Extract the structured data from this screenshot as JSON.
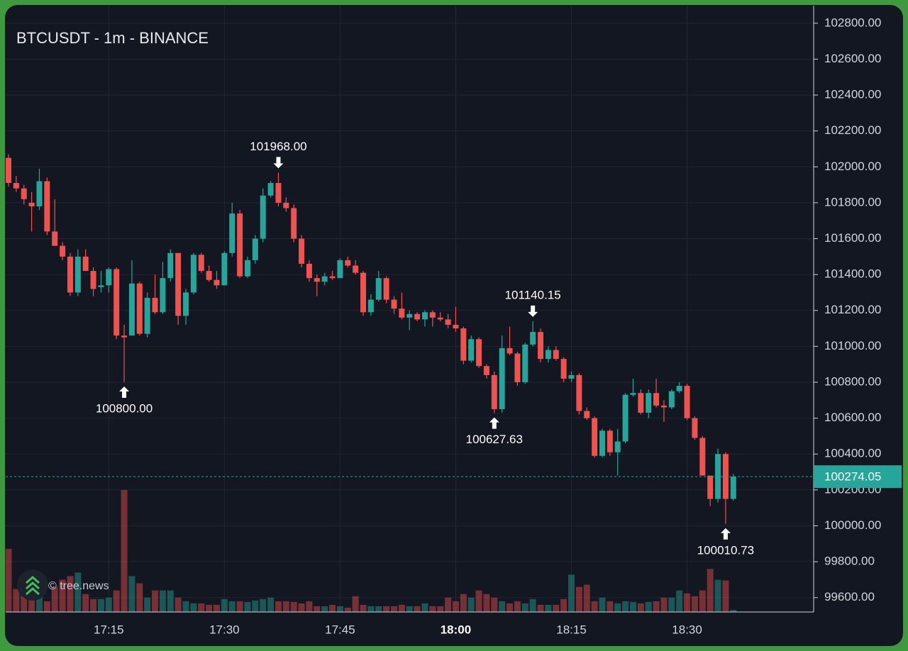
{
  "chart_data": {
    "type": "candlestick",
    "title": "BTCUSDT - 1m - BINANCE",
    "watermark": "© tree.news",
    "categories": [
      null,
      null,
      null,
      null,
      null,
      null,
      null,
      null,
      null,
      null,
      null,
      null,
      null,
      "17:15",
      null,
      null,
      null,
      null,
      null,
      null,
      null,
      null,
      null,
      null,
      null,
      null,
      null,
      null,
      "17:30",
      null,
      null,
      null,
      null,
      null,
      null,
      null,
      null,
      null,
      null,
      null,
      null,
      null,
      null,
      "17:45",
      null,
      null,
      null,
      null,
      null,
      null,
      null,
      null,
      null,
      null,
      null,
      null,
      null,
      null,
      "18:00",
      null,
      null,
      null,
      null,
      null,
      null,
      null,
      null,
      null,
      null,
      null,
      null,
      null,
      null,
      "18:15",
      null,
      null,
      null,
      null,
      null,
      null,
      null,
      null,
      null,
      null,
      null,
      null,
      null,
      null,
      "18:30",
      null,
      null,
      null,
      null,
      null,
      null
    ],
    "open": [
      102050,
      101910,
      101880,
      101800,
      101780,
      101920,
      101640,
      101560,
      101500,
      101300,
      101500,
      101420,
      101330,
      101340,
      101430,
      101060,
      101060,
      101350,
      101070,
      101270,
      101190,
      101380,
      101520,
      101170,
      101300,
      101510,
      101420,
      101370,
      101340,
      101520,
      101740,
      101390,
      101480,
      101600,
      101840,
      101910,
      101800,
      101770,
      101600,
      101460,
      101380,
      101360,
      101390,
      101380,
      101480,
      101450,
      101410,
      101190,
      101260,
      101380,
      101260,
      101210,
      101160,
      101180,
      101150,
      101190,
      101160,
      101150,
      101120,
      101100,
      100920,
      101040,
      100890,
      100840,
      100650,
      100990,
      100960,
      100800,
      101010,
      101080,
      100930,
      100980,
      100930,
      100820,
      100840,
      100640,
      100600,
      100390,
      100530,
      100410,
      100470,
      100730,
      100740,
      100630,
      100740,
      100670,
      100660,
      100750,
      100780,
      100600,
      100490,
      100280,
      100150,
      100400,
      100150
    ],
    "high": [
      102070,
      101950,
      101900,
      101860,
      101990,
      101940,
      101820,
      101580,
      101520,
      101540,
      101540,
      101440,
      101420,
      101440,
      101440,
      101120,
      101480,
      101360,
      101300,
      101400,
      101470,
      101540,
      101520,
      101320,
      101520,
      101520,
      101450,
      101420,
      101530,
      101800,
      101760,
      101500,
      101620,
      101880,
      101920,
      101968,
      101830,
      101790,
      101620,
      101480,
      101400,
      101410,
      101420,
      101490,
      101500,
      101480,
      101420,
      101290,
      101420,
      101390,
      101280,
      101300,
      101200,
      101190,
      101200,
      101200,
      101190,
      101180,
      101220,
      101110,
      101060,
      101050,
      100900,
      100860,
      101060,
      101110,
      100970,
      101020,
      101140.15,
      101100,
      101000,
      101000,
      100940,
      100860,
      100850,
      100660,
      100610,
      100540,
      100540,
      100540,
      100740,
      100820,
      100760,
      100760,
      100820,
      100700,
      100760,
      100800,
      100790,
      100610,
      100500,
      100280,
      100430,
      100410,
      100290
    ],
    "low": [
      101890,
      101860,
      101790,
      101640,
      101760,
      101620,
      101560,
      101480,
      101280,
      101280,
      101420,
      101280,
      101300,
      101300,
      101040,
      100800,
      101060,
      101060,
      101050,
      101180,
      101180,
      101360,
      101120,
      101120,
      101290,
      101410,
      101360,
      101320,
      101340,
      101500,
      101380,
      101380,
      101460,
      101580,
      101830,
      101780,
      101750,
      101580,
      101440,
      101360,
      101280,
      101340,
      101370,
      101380,
      101440,
      101400,
      101170,
      101170,
      101250,
      101240,
      101180,
      101150,
      101090,
      101140,
      101110,
      101110,
      101140,
      101100,
      101080,
      100900,
      100910,
      100880,
      100820,
      100627.63,
      100630,
      100950,
      100780,
      100790,
      101000,
      100910,
      100910,
      100920,
      100800,
      100800,
      100620,
      100590,
      100380,
      100380,
      100390,
      100280,
      100460,
      100720,
      100620,
      100600,
      100660,
      100580,
      100650,
      100740,
      100590,
      100480,
      100280,
      100110,
      100130,
      100010.73,
      100140
    ],
    "close": [
      101910,
      101880,
      101820,
      101780,
      101920,
      101640,
      101560,
      101500,
      101300,
      101500,
      101420,
      101320,
      101340,
      101430,
      101060,
      101050,
      101350,
      101070,
      101270,
      101190,
      101380,
      101520,
      101170,
      101300,
      101510,
      101420,
      101370,
      101340,
      101520,
      101740,
      101390,
      101480,
      101600,
      101840,
      101910,
      101800,
      101770,
      101600,
      101460,
      101380,
      101360,
      101390,
      101380,
      101480,
      101450,
      101410,
      101190,
      101260,
      101380,
      101260,
      101210,
      101160,
      101180,
      101150,
      101190,
      101160,
      101150,
      101120,
      101100,
      100920,
      101040,
      100890,
      100840,
      100650,
      100990,
      100960,
      100800,
      101010,
      101080,
      100930,
      100980,
      100930,
      100820,
      100840,
      100640,
      100600,
      100390,
      100530,
      100410,
      100470,
      100730,
      100740,
      100630,
      100740,
      100670,
      100660,
      100750,
      100780,
      100600,
      100490,
      100280,
      100150,
      100400,
      100150,
      100274.05
    ],
    "volume": [
      88,
      32,
      25,
      20,
      35,
      15,
      35,
      45,
      50,
      55,
      25,
      18,
      18,
      20,
      30,
      170,
      50,
      40,
      20,
      30,
      30,
      30,
      20,
      15,
      12,
      12,
      10,
      10,
      18,
      15,
      15,
      14,
      16,
      18,
      20,
      15,
      15,
      14,
      12,
      15,
      8,
      8,
      10,
      8,
      6,
      22,
      10,
      8,
      8,
      8,
      8,
      10,
      8,
      8,
      12,
      8,
      8,
      20,
      15,
      25,
      20,
      30,
      25,
      20,
      15,
      12,
      15,
      12,
      18,
      10,
      10,
      10,
      18,
      52,
      35,
      38,
      15,
      20,
      15,
      12,
      15,
      14,
      12,
      14,
      15,
      20,
      20,
      30,
      26,
      22,
      30,
      60,
      45,
      44,
      3
    ],
    "high_labels": [
      null,
      null,
      null,
      null,
      null,
      null,
      null,
      null,
      null,
      null,
      null,
      null,
      null,
      null,
      null,
      null,
      null,
      null,
      null,
      null,
      null,
      null,
      null,
      null,
      null,
      null,
      null,
      null,
      null,
      null,
      null,
      null,
      null,
      null,
      null,
      "101968.00",
      null,
      null,
      null,
      null,
      null,
      null,
      null,
      null,
      null,
      null,
      null,
      null,
      null,
      null,
      null,
      null,
      null,
      null,
      null,
      null,
      null,
      null,
      null,
      null,
      null,
      null,
      null,
      null,
      null,
      null,
      null,
      null,
      "101140.15",
      null,
      null,
      null,
      null,
      null,
      null,
      null,
      null,
      null,
      null,
      null,
      null,
      null,
      null,
      null,
      null,
      null,
      null,
      null,
      null,
      null,
      null,
      null,
      null,
      null,
      null
    ],
    "low_labels": [
      null,
      null,
      null,
      null,
      null,
      null,
      null,
      null,
      null,
      null,
      null,
      null,
      null,
      null,
      null,
      "100800.00",
      null,
      null,
      null,
      null,
      null,
      null,
      null,
      null,
      null,
      null,
      null,
      null,
      null,
      null,
      null,
      null,
      null,
      null,
      null,
      null,
      null,
      null,
      null,
      null,
      null,
      null,
      null,
      null,
      null,
      null,
      null,
      null,
      null,
      null,
      null,
      null,
      null,
      null,
      null,
      null,
      null,
      null,
      null,
      null,
      null,
      null,
      null,
      "100627.63",
      null,
      null,
      null,
      null,
      null,
      null,
      null,
      null,
      null,
      null,
      null,
      null,
      null,
      null,
      null,
      null,
      null,
      null,
      null,
      null,
      null,
      null,
      null,
      null,
      null,
      null,
      null,
      null,
      null,
      "100010.73",
      null
    ],
    "up_color": "#26a69a",
    "down_color": "#ef5350",
    "last_price": 100274.05,
    "last_price_label": "100274.05",
    "ylim": [
      99520,
      102890
    ],
    "yticks": [
      {
        "value": 99600,
        "label": "99600.00"
      },
      {
        "value": 99800,
        "label": "99800.00"
      },
      {
        "value": 100000,
        "label": "100000.00"
      },
      {
        "value": 100200,
        "label": "100200.00"
      },
      {
        "value": 100400,
        "label": "100400.00"
      },
      {
        "value": 100600,
        "label": "100600.00"
      },
      {
        "value": 100800,
        "label": "100800.00"
      },
      {
        "value": 101000,
        "label": "101000.00"
      },
      {
        "value": 101200,
        "label": "101200.00"
      },
      {
        "value": 101400,
        "label": "101400.00"
      },
      {
        "value": 101600,
        "label": "101600.00"
      },
      {
        "value": 101800,
        "label": "101800.00"
      },
      {
        "value": 102000,
        "label": "102000.00"
      },
      {
        "value": 102200,
        "label": "102200.00"
      },
      {
        "value": 102400,
        "label": "102400.00"
      },
      {
        "value": 102600,
        "label": "102600.00"
      },
      {
        "value": 102800,
        "label": "102800.00"
      }
    ],
    "grid": true
  }
}
